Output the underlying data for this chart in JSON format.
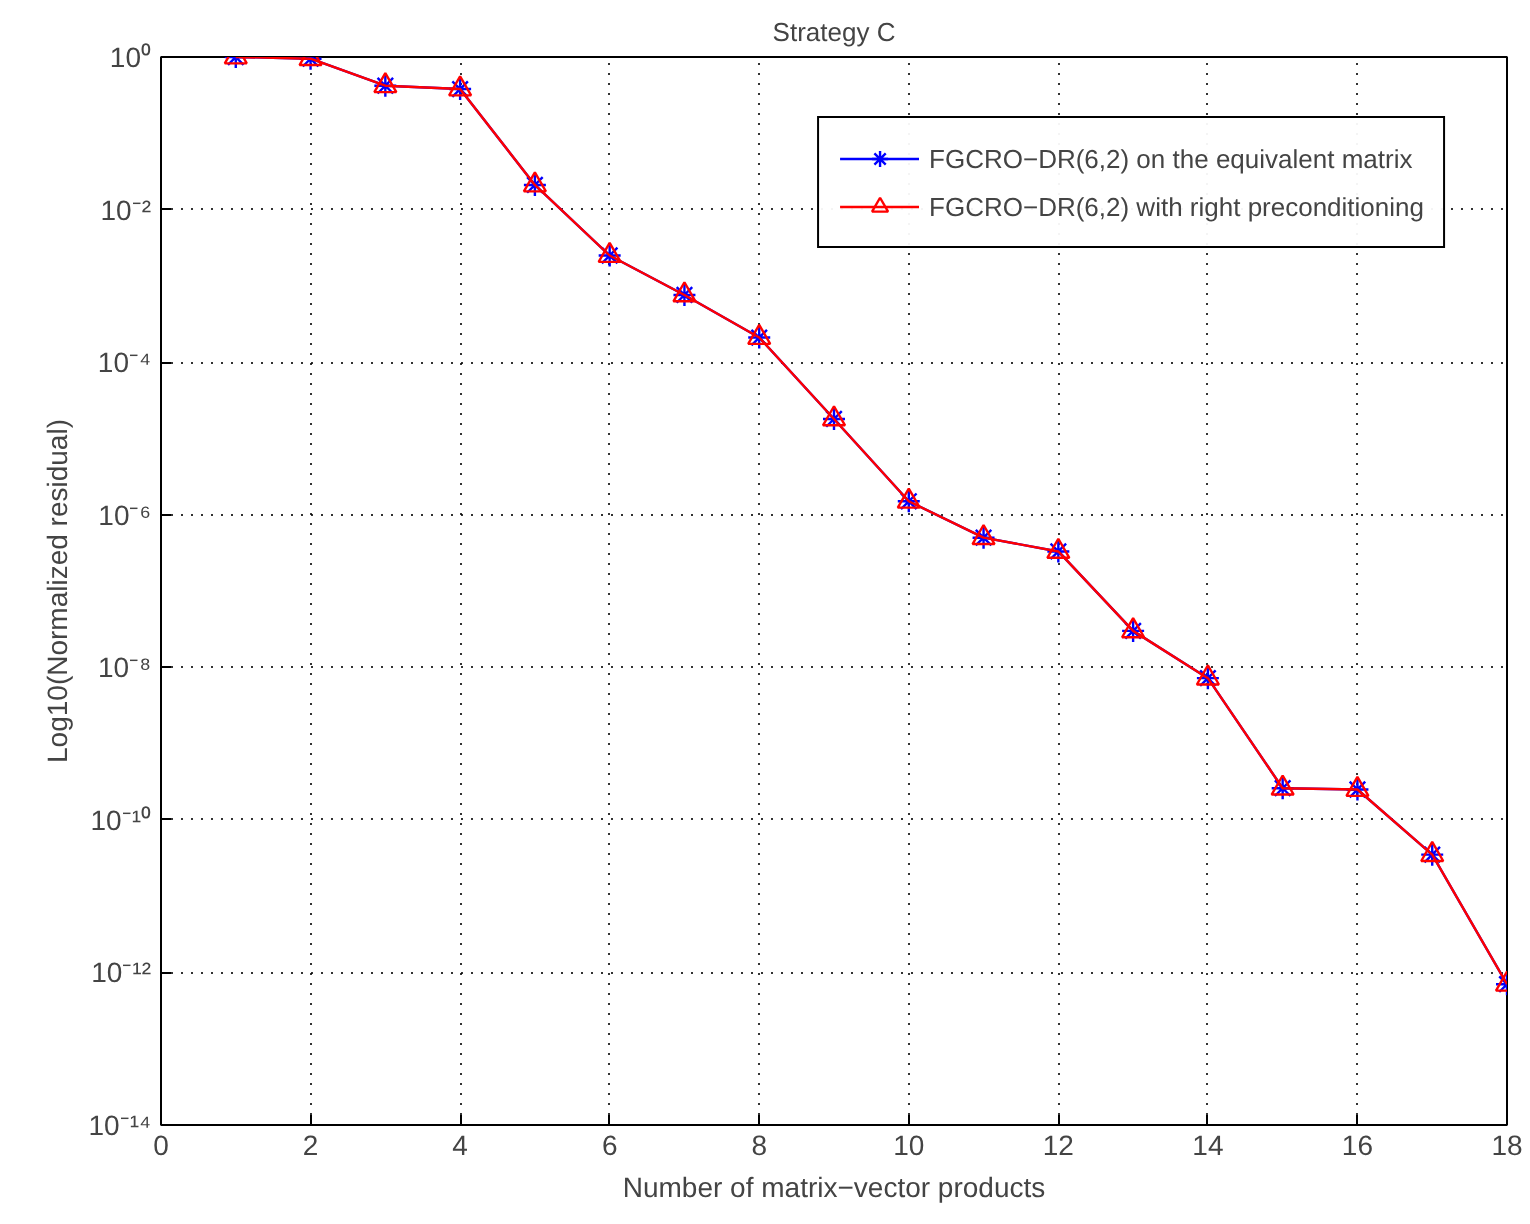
{
  "chart_data": {
    "type": "line",
    "title": "Strategy C",
    "xlabel": "Number of matrix−vector products",
    "ylabel": "Log10(Normalized residual)",
    "x": [
      1,
      2,
      3,
      4,
      5,
      6,
      7,
      8,
      9,
      10,
      11,
      12,
      13,
      14,
      15,
      16,
      17,
      18
    ],
    "series": [
      {
        "name": "FGCRO−DR(6,2) on the equivalent matrix",
        "color": "#0000ff",
        "marker": "cross",
        "values": [
          1.0,
          0.95,
          0.42,
          0.38,
          0.021,
          0.0025,
          0.00076,
          0.00021,
          1.8e-05,
          1.5e-06,
          5e-07,
          3.3e-07,
          3e-08,
          7.2e-09,
          2.6e-10,
          2.5e-10,
          3.5e-11,
          7e-13
        ]
      },
      {
        "name": "FGCRO−DR(6,2) with right preconditioning",
        "color": "#ff0000",
        "marker": "triangle",
        "values": [
          1.0,
          0.95,
          0.42,
          0.38,
          0.021,
          0.0025,
          0.00076,
          0.00021,
          1.8e-05,
          1.5e-06,
          5e-07,
          3.3e-07,
          3e-08,
          7.2e-09,
          2.6e-10,
          2.5e-10,
          3.5e-11,
          7e-13
        ]
      }
    ],
    "log": "y",
    "xlim": [
      0,
      18
    ],
    "ylim": [
      1e-14,
      1
    ],
    "xticks": [
      0,
      2,
      4,
      6,
      8,
      10,
      12,
      14,
      16,
      18
    ],
    "yticks": [
      {
        "value": 1,
        "label": "10⁰"
      },
      {
        "value": 0.01,
        "label": "10⁻²"
      },
      {
        "value": 0.0001,
        "label": "10⁻⁴"
      },
      {
        "value": 1e-06,
        "label": "10⁻⁶"
      },
      {
        "value": 1e-08,
        "label": "10⁻⁸"
      },
      {
        "value": 1e-10,
        "label": "10⁻¹⁰"
      },
      {
        "value": 1e-12,
        "label": "10⁻¹²"
      },
      {
        "value": 1e-14,
        "label": "10⁻¹⁴"
      }
    ],
    "grid": true,
    "legend": "top right",
    "line_style": "solid"
  }
}
